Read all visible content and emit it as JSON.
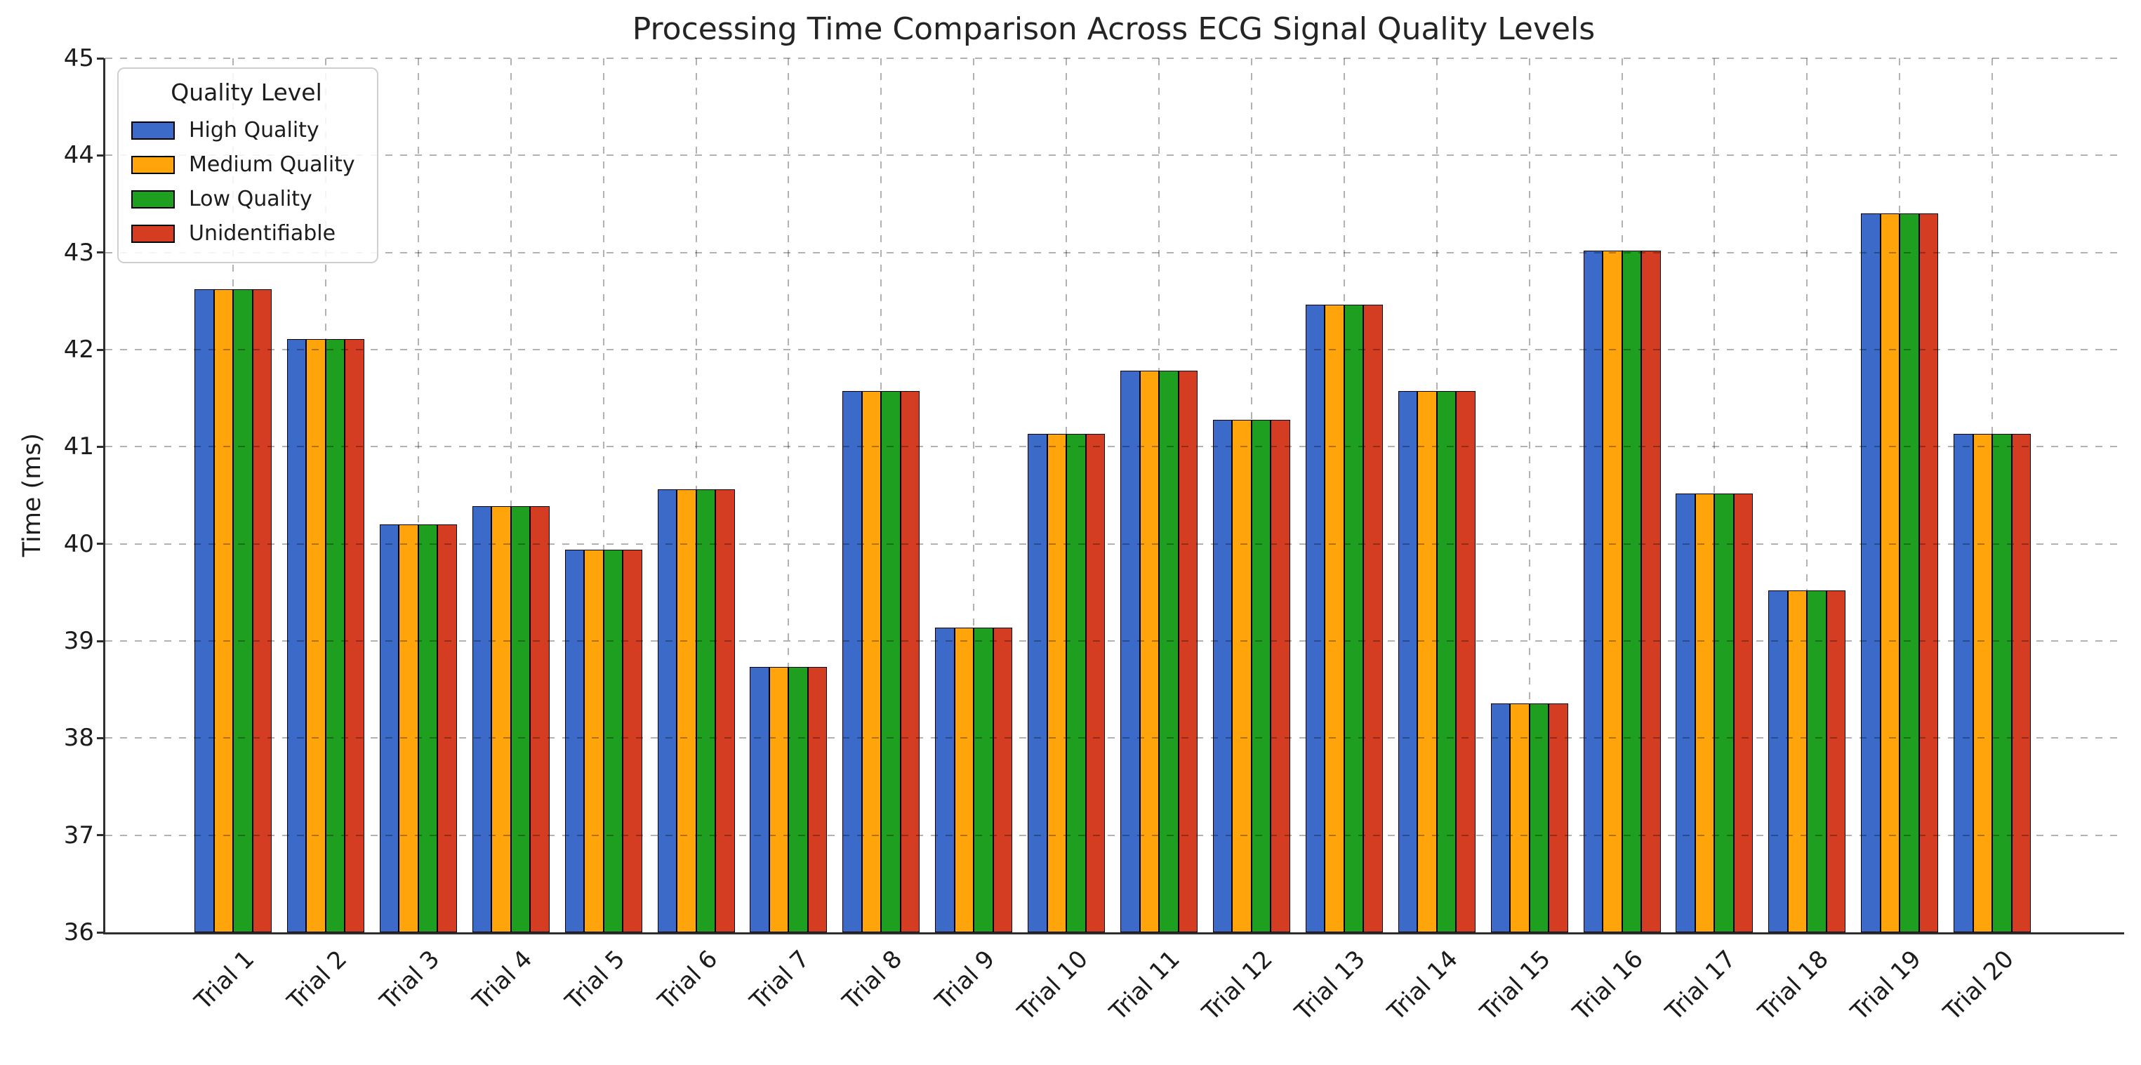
{
  "title": "Processing Time Comparison Across ECG Signal Quality Levels",
  "axes": {
    "ylabel": "Time (ms)",
    "yticks": [
      36,
      37,
      38,
      39,
      40,
      41,
      42,
      43,
      44,
      45
    ]
  },
  "legend": {
    "title": "Quality Level"
  },
  "chart_data": {
    "type": "bar",
    "title": "Processing Time Comparison Across ECG Signal Quality Levels",
    "xlabel": "",
    "ylabel": "Time (ms)",
    "ylim": [
      36,
      45
    ],
    "grid": true,
    "grid_style": "dashed, black at 30% opacity, drawn above bars",
    "legend_position": "upper left",
    "legend_title": "Quality Level",
    "bar_edge_color": "#000000",
    "categories": [
      "Trial 1",
      "Trial 2",
      "Trial 3",
      "Trial 4",
      "Trial 5",
      "Trial 6",
      "Trial 7",
      "Trial 8",
      "Trial 9",
      "Trial 10",
      "Trial 11",
      "Trial 12",
      "Trial 13",
      "Trial 14",
      "Trial 15",
      "Trial 16",
      "Trial 17",
      "Trial 18",
      "Trial 19",
      "Trial 20"
    ],
    "series": [
      {
        "name": "High Quality",
        "color": "#3b6ac8",
        "values": [
          42.62,
          42.11,
          40.2,
          40.39,
          39.94,
          40.56,
          38.73,
          41.57,
          39.14,
          41.13,
          41.78,
          41.28,
          42.46,
          41.57,
          38.36,
          43.02,
          40.52,
          39.52,
          43.4,
          41.13
        ]
      },
      {
        "name": "Medium Quality",
        "color": "#ffa40a",
        "values": [
          42.62,
          42.11,
          40.2,
          40.39,
          39.94,
          40.56,
          38.73,
          41.57,
          39.14,
          41.13,
          41.78,
          41.28,
          42.46,
          41.57,
          38.36,
          43.02,
          40.52,
          39.52,
          43.4,
          41.13
        ]
      },
      {
        "name": "Low Quality",
        "color": "#1f9f1f",
        "values": [
          42.62,
          42.11,
          40.2,
          40.39,
          39.94,
          40.56,
          38.73,
          41.57,
          39.14,
          41.13,
          41.78,
          41.28,
          42.46,
          41.57,
          38.36,
          43.02,
          40.52,
          39.52,
          43.4,
          41.13
        ]
      },
      {
        "name": "Unidentifiable",
        "color": "#d43d22",
        "values": [
          42.62,
          42.11,
          40.2,
          40.39,
          39.94,
          40.56,
          38.73,
          41.57,
          39.14,
          41.13,
          41.78,
          41.28,
          42.46,
          41.57,
          38.36,
          43.02,
          40.52,
          39.52,
          43.4,
          41.13
        ]
      }
    ]
  }
}
